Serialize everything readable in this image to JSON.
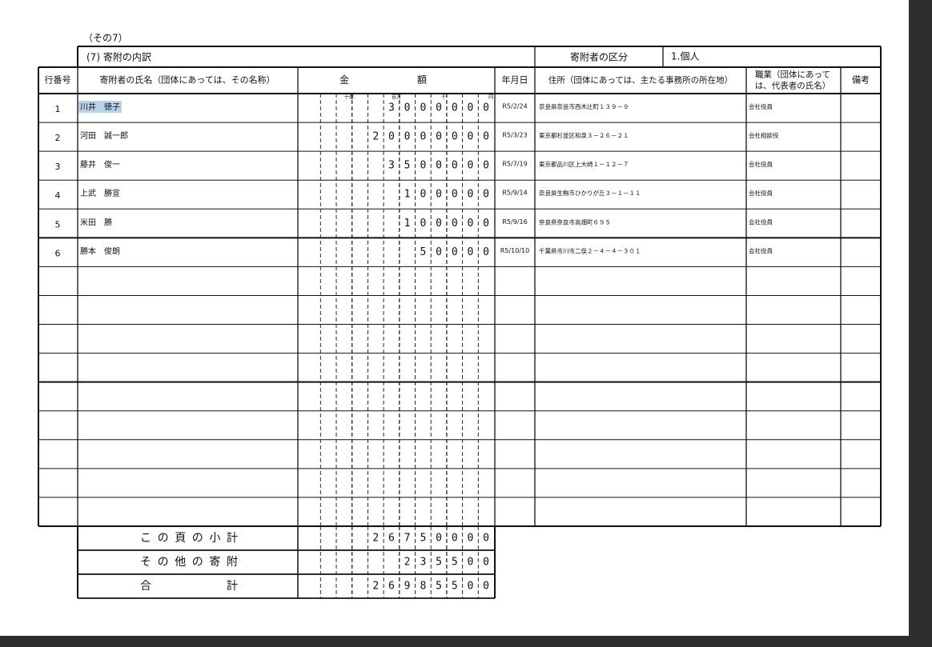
{
  "page_label": "（その7）",
  "section_title": "(7)  寄附の内訳",
  "donor_category": {
    "label": "寄附者の区分",
    "value": "1.個人"
  },
  "table": {
    "headers": {
      "row_no": "行番号",
      "name": "寄附者の氏名（団体にあっては、その名称）",
      "amount": [
        "金",
        "額"
      ],
      "date": "年月日",
      "address": "住所（団体にあっては、主たる事務所の所在地）",
      "occupation": [
        "職業（団体にあって",
        "は、代表者の氏名）"
      ],
      "remarks": "備考"
    },
    "digit_markers": [
      {
        "text": "十億",
        "place": 9
      },
      {
        "text": "百万",
        "place": 6
      },
      {
        "text": "千",
        "place": 3
      },
      {
        "text": "円",
        "place": 0
      }
    ],
    "rows": [
      {
        "no": 1,
        "name": "川井　徳子",
        "amount": "3000000",
        "date": "R5/2/24",
        "address": "奈良県奈良市西木辻町１３９－９",
        "occupation": "会社役員"
      },
      {
        "no": 2,
        "name": "河田　誠一郎",
        "amount": "20000000",
        "date": "R5/3/23",
        "address": "東京都杉並区和泉３－２６－２１",
        "occupation": "会社相談役"
      },
      {
        "no": 3,
        "name": "藤井　俊一",
        "amount": "3500000",
        "date": "R5/7/19",
        "address": "東京都品川区上大崎１－１２－７",
        "occupation": "会社役員"
      },
      {
        "no": 4,
        "name": "上武　勝宣",
        "amount": "100000",
        "date": "R5/9/14",
        "address": "奈良県生駒市ひかりが丘３－１－１１",
        "occupation": "会社役員"
      },
      {
        "no": 5,
        "name": "米田　勝",
        "amount": "100000",
        "date": "R5/9/16",
        "address": "奈良県奈良市高畑町６９５",
        "occupation": "会社役員"
      },
      {
        "no": 6,
        "name": "勝本　俊朗",
        "amount": "50000",
        "date": "R5/10/10",
        "address": "千葉県市川市二俣２－４－４－３０１",
        "occupation": "会社役員"
      }
    ],
    "totals": [
      {
        "label": "この頁の小計",
        "amount": "26750000"
      },
      {
        "label": "その他の寄附",
        "amount": "235500"
      },
      {
        "label": "合計",
        "amount": "26985500"
      }
    ]
  }
}
